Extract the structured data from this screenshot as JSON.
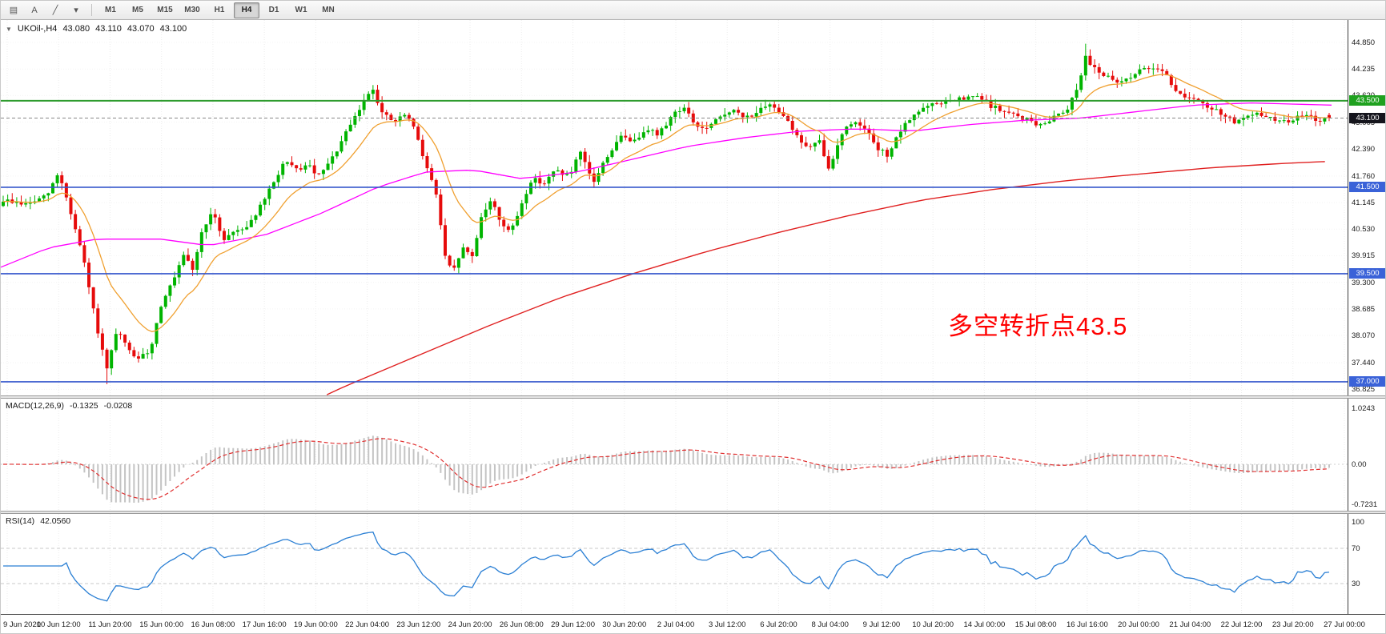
{
  "toolbar": {
    "tool_buttons": [
      {
        "name": "chart-windows-icon",
        "glyph": "▤"
      },
      {
        "name": "text-tool-button",
        "glyph": "A"
      },
      {
        "name": "trendline-tool-button",
        "glyph": "╱"
      },
      {
        "name": "tools-dropdown-icon",
        "glyph": "▾"
      }
    ],
    "timeframes": [
      "M1",
      "M5",
      "M15",
      "M30",
      "H1",
      "H4",
      "D1",
      "W1",
      "MN"
    ],
    "active_timeframe": "H4"
  },
  "header": {
    "collapse_icon": "▼",
    "symbol_period": "UKOil-,H4",
    "open": "43.080",
    "high": "43.110",
    "low": "43.070",
    "close": "43.100"
  },
  "annotation": {
    "text": "多空转折点43.5",
    "color": "#ff0000"
  },
  "price_axis": {
    "ticks": [
      "44.850",
      "44.235",
      "43.620",
      "43.005",
      "42.390",
      "41.760",
      "41.145",
      "40.530",
      "39.915",
      "39.300",
      "38.685",
      "38.070",
      "37.440",
      "36.825"
    ]
  },
  "badges": [
    {
      "name": "level-badge-43500",
      "label": "43.500",
      "color": "#1fa11f",
      "price": 43.5
    },
    {
      "name": "current-price-badge",
      "label": "43.100",
      "color": "#15151d",
      "price": 43.1
    },
    {
      "name": "level-badge-41500",
      "label": "41.500",
      "color": "#3a62d8",
      "price": 41.5
    },
    {
      "name": "level-badge-39500",
      "label": "39.500",
      "color": "#3a62d8",
      "price": 39.5
    },
    {
      "name": "level-badge-37000",
      "label": "37.000",
      "color": "#3a62d8",
      "price": 37.0
    }
  ],
  "macd": {
    "header": "MACD(12,26,9)",
    "value": "-0.1325",
    "signal_value": "-0.0208",
    "axis": [
      "1.0243",
      "0.00",
      "-0.7231"
    ]
  },
  "rsi": {
    "header": "RSI(14)",
    "value": "42.0560",
    "axis": [
      "100",
      "70",
      "30"
    ],
    "levels": [
      70,
      30
    ]
  },
  "time_axis": {
    "labels": [
      "9 Jun 2020",
      "10 Jun 12:00",
      "11 Jun 20:00",
      "15 Jun 00:00",
      "16 Jun 08:00",
      "17 Jun 16:00",
      "19 Jun 00:00",
      "22 Jun 04:00",
      "23 Jun 12:00",
      "24 Jun 20:00",
      "26 Jun 08:00",
      "29 Jun 12:00",
      "30 Jun 20:00",
      "2 Jul 04:00",
      "3 Jul 12:00",
      "6 Jul 20:00",
      "8 Jul 04:00",
      "9 Jul 12:00",
      "10 Jul 20:00",
      "14 Jul 00:00",
      "15 Jul 08:00",
      "16 Jul 16:00",
      "20 Jul 00:00",
      "21 Jul 04:00",
      "22 Jul 12:00",
      "23 Jul 20:00",
      "27 Jul 00:00"
    ]
  },
  "chart_data": {
    "type": "candlestick",
    "symbol": "UKOil-",
    "timeframe": "H4",
    "ohlc_display": {
      "open": 43.08,
      "high": 43.11,
      "low": 43.07,
      "close": 43.1
    },
    "num_candles": 295,
    "last_close": 43.1,
    "current_price": 43.1,
    "y_min": 36.825,
    "y_max": 44.85,
    "hlines": [
      {
        "price": 43.5,
        "color": "#2e9b2e",
        "width": 2
      },
      {
        "price": 41.5,
        "color": "#3355cc",
        "width": 1.6
      },
      {
        "price": 39.5,
        "color": "#3355cc",
        "width": 1.6
      },
      {
        "price": 37.0,
        "color": "#3355cc",
        "width": 1.6
      }
    ],
    "colors": {
      "up": "#00b400",
      "down": "#e60b0b",
      "ma_fast": "#f0a030",
      "ma_mid": "#ff00ff",
      "ma_slow": "#e02020",
      "macd_hist": "#c4c4c4",
      "macd_signal": "#e03030",
      "rsi_line": "#2a7fd4"
    },
    "price_path": [
      [
        0,
        41.2
      ],
      [
        0.018,
        41.1
      ],
      [
        0.033,
        41.3
      ],
      [
        0.042,
        41.85
      ],
      [
        0.051,
        40.9
      ],
      [
        0.06,
        39.9
      ],
      [
        0.069,
        38.5
      ],
      [
        0.078,
        37.25
      ],
      [
        0.086,
        38.2
      ],
      [
        0.093,
        37.8
      ],
      [
        0.102,
        37.5
      ],
      [
        0.111,
        37.75
      ],
      [
        0.12,
        38.9
      ],
      [
        0.128,
        39.3
      ],
      [
        0.136,
        39.9
      ],
      [
        0.143,
        39.6
      ],
      [
        0.151,
        40.6
      ],
      [
        0.158,
        40.9
      ],
      [
        0.166,
        40.3
      ],
      [
        0.175,
        40.5
      ],
      [
        0.184,
        40.6
      ],
      [
        0.193,
        41.0
      ],
      [
        0.204,
        41.6
      ],
      [
        0.212,
        42.1
      ],
      [
        0.22,
        41.9
      ],
      [
        0.23,
        42.0
      ],
      [
        0.238,
        41.75
      ],
      [
        0.247,
        42.1
      ],
      [
        0.256,
        42.6
      ],
      [
        0.265,
        43.1
      ],
      [
        0.274,
        43.6
      ],
      [
        0.278,
        43.85
      ],
      [
        0.286,
        43.2
      ],
      [
        0.295,
        43.0
      ],
      [
        0.304,
        43.2
      ],
      [
        0.312,
        42.7
      ],
      [
        0.319,
        42.0
      ],
      [
        0.327,
        41.3
      ],
      [
        0.333,
        39.9
      ],
      [
        0.339,
        39.5
      ],
      [
        0.346,
        40.1
      ],
      [
        0.354,
        39.9
      ],
      [
        0.361,
        40.9
      ],
      [
        0.369,
        41.2
      ],
      [
        0.375,
        40.7
      ],
      [
        0.383,
        40.45
      ],
      [
        0.392,
        41.2
      ],
      [
        0.399,
        41.7
      ],
      [
        0.408,
        41.6
      ],
      [
        0.417,
        41.9
      ],
      [
        0.427,
        41.75
      ],
      [
        0.435,
        42.3
      ],
      [
        0.445,
        41.6
      ],
      [
        0.455,
        42.2
      ],
      [
        0.467,
        42.7
      ],
      [
        0.476,
        42.55
      ],
      [
        0.485,
        42.9
      ],
      [
        0.494,
        42.7
      ],
      [
        0.505,
        43.2
      ],
      [
        0.513,
        43.35
      ],
      [
        0.523,
        42.9
      ],
      [
        0.531,
        42.85
      ],
      [
        0.54,
        43.1
      ],
      [
        0.549,
        43.3
      ],
      [
        0.559,
        43.1
      ],
      [
        0.569,
        43.25
      ],
      [
        0.58,
        43.4
      ],
      [
        0.59,
        43.15
      ],
      [
        0.599,
        42.65
      ],
      [
        0.607,
        42.4
      ],
      [
        0.616,
        42.55
      ],
      [
        0.623,
        41.85
      ],
      [
        0.631,
        42.7
      ],
      [
        0.64,
        43.0
      ],
      [
        0.649,
        42.95
      ],
      [
        0.658,
        42.4
      ],
      [
        0.667,
        42.25
      ],
      [
        0.677,
        42.8
      ],
      [
        0.687,
        43.2
      ],
      [
        0.696,
        43.35
      ],
      [
        0.706,
        43.45
      ],
      [
        0.716,
        43.5
      ],
      [
        0.726,
        43.55
      ],
      [
        0.735,
        43.6
      ],
      [
        0.744,
        43.4
      ],
      [
        0.754,
        43.25
      ],
      [
        0.764,
        43.15
      ],
      [
        0.774,
        43.05
      ],
      [
        0.783,
        42.9
      ],
      [
        0.792,
        43.15
      ],
      [
        0.802,
        43.3
      ],
      [
        0.81,
        43.8
      ],
      [
        0.816,
        44.5
      ],
      [
        0.824,
        44.25
      ],
      [
        0.832,
        44.05
      ],
      [
        0.84,
        43.9
      ],
      [
        0.849,
        44.05
      ],
      [
        0.858,
        44.2
      ],
      [
        0.869,
        44.3
      ],
      [
        0.877,
        44.15
      ],
      [
        0.884,
        43.7
      ],
      [
        0.893,
        43.6
      ],
      [
        0.902,
        43.45
      ],
      [
        0.911,
        43.3
      ],
      [
        0.92,
        43.2
      ],
      [
        0.929,
        43.0
      ],
      [
        0.938,
        43.1
      ],
      [
        0.947,
        43.2
      ],
      [
        0.956,
        43.1
      ],
      [
        0.965,
        43.0
      ],
      [
        0.974,
        43.1
      ],
      [
        0.983,
        43.15
      ],
      [
        0.992,
        43.05
      ],
      [
        1,
        43.1
      ]
    ],
    "ma_mid_path": [
      [
        0,
        39.65
      ],
      [
        0.036,
        40.1
      ],
      [
        0.072,
        40.3
      ],
      [
        0.12,
        40.3
      ],
      [
        0.156,
        40.15
      ],
      [
        0.199,
        40.4
      ],
      [
        0.241,
        40.9
      ],
      [
        0.283,
        41.5
      ],
      [
        0.319,
        41.85
      ],
      [
        0.355,
        41.9
      ],
      [
        0.391,
        41.7
      ],
      [
        0.433,
        41.85
      ],
      [
        0.475,
        42.15
      ],
      [
        0.517,
        42.45
      ],
      [
        0.56,
        42.65
      ],
      [
        0.602,
        42.8
      ],
      [
        0.644,
        42.85
      ],
      [
        0.686,
        42.8
      ],
      [
        0.728,
        42.95
      ],
      [
        0.77,
        43.05
      ],
      [
        0.812,
        43.1
      ],
      [
        0.854,
        43.25
      ],
      [
        0.897,
        43.4
      ],
      [
        0.939,
        43.45
      ],
      [
        1,
        43.4
      ]
    ],
    "ma_slow_path": [
      [
        0.245,
        36.7
      ],
      [
        0.259,
        36.9
      ],
      [
        0.313,
        37.6
      ],
      [
        0.367,
        38.3
      ],
      [
        0.421,
        38.95
      ],
      [
        0.475,
        39.5
      ],
      [
        0.529,
        40.0
      ],
      [
        0.584,
        40.45
      ],
      [
        0.638,
        40.85
      ],
      [
        0.692,
        41.2
      ],
      [
        0.746,
        41.45
      ],
      [
        0.8,
        41.65
      ],
      [
        0.854,
        41.8
      ],
      [
        0.909,
        41.95
      ],
      [
        0.963,
        42.05
      ],
      [
        1,
        42.1
      ]
    ]
  }
}
